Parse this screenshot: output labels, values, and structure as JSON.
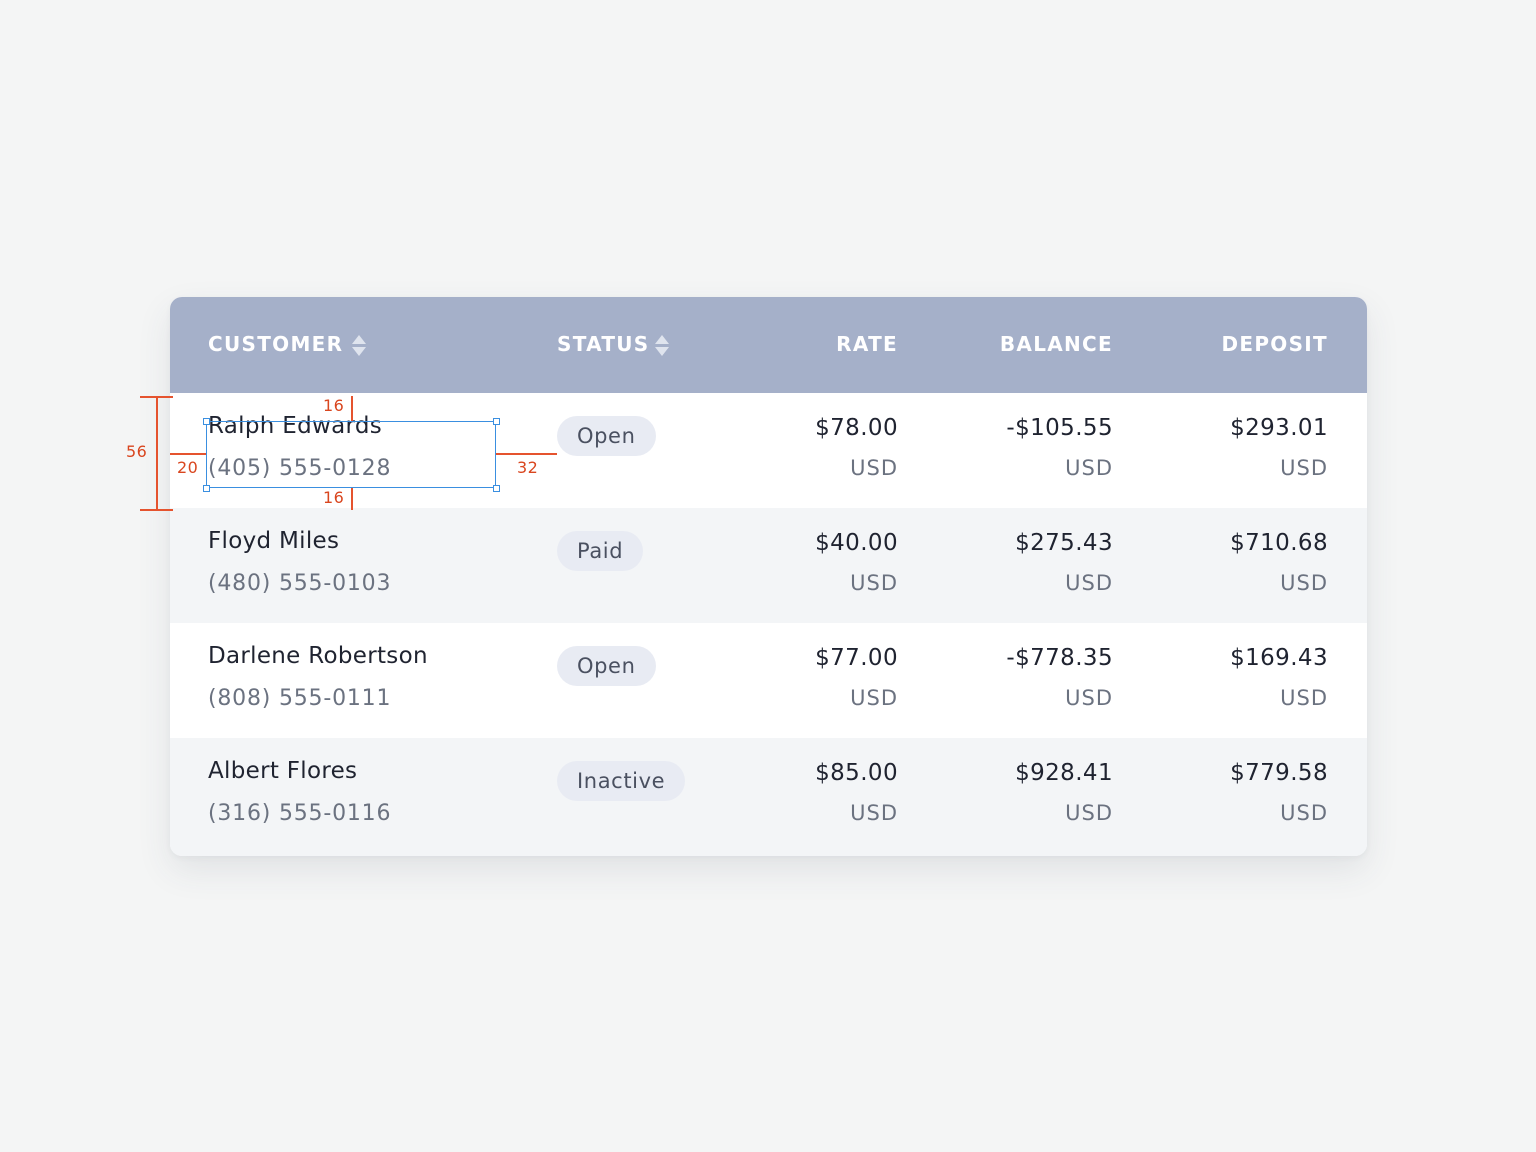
{
  "table": {
    "columns": [
      {
        "label": "CUSTOMER",
        "sortable": true
      },
      {
        "label": "STATUS",
        "sortable": true
      },
      {
        "label": "RATE",
        "sortable": false
      },
      {
        "label": "BALANCE",
        "sortable": false
      },
      {
        "label": "DEPOSIT",
        "sortable": false
      }
    ],
    "rows": [
      {
        "name": "Ralph Edwards",
        "phone": "(405) 555-0128",
        "status": "Open",
        "rate": "$78.00",
        "rate_cur": "USD",
        "balance": "-$105.55",
        "balance_cur": "USD",
        "deposit": "$293.01",
        "deposit_cur": "USD"
      },
      {
        "name": "Floyd Miles",
        "phone": "(480) 555-0103",
        "status": "Paid",
        "rate": "$40.00",
        "rate_cur": "USD",
        "balance": "$275.43",
        "balance_cur": "USD",
        "deposit": "$710.68",
        "deposit_cur": "USD"
      },
      {
        "name": "Darlene Robertson",
        "phone": "(808) 555-0111",
        "status": "Open",
        "rate": "$77.00",
        "rate_cur": "USD",
        "balance": "-$778.35",
        "balance_cur": "USD",
        "deposit": "$169.43",
        "deposit_cur": "USD"
      },
      {
        "name": "Albert Flores",
        "phone": "(316) 555-0116",
        "status": "Inactive",
        "rate": "$85.00",
        "rate_cur": "USD",
        "balance": "$928.41",
        "balance_cur": "USD",
        "deposit": "$779.58",
        "deposit_cur": "USD"
      }
    ]
  },
  "annotations": {
    "row_height": "56",
    "padding_left": "20",
    "padding_top": "16",
    "padding_bottom": "16",
    "gap_right": "32"
  },
  "colors": {
    "header_bg": "#a5b0c9",
    "alt_row_bg": "#f3f5f7",
    "badge_bg": "#e8ebf3",
    "annotation_red": "#e5532e",
    "selection_blue": "#3a8fe0"
  }
}
